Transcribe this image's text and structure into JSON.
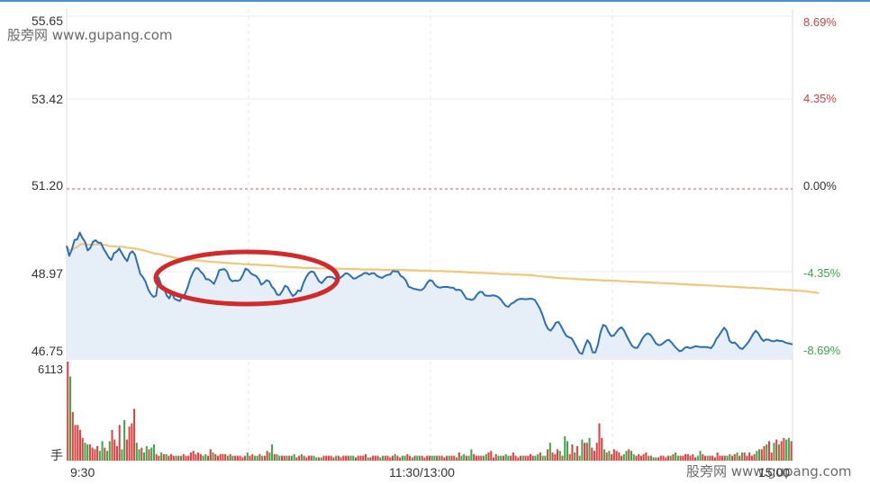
{
  "watermark": "股旁网 www.gupang.com",
  "colors": {
    "price_line": "#2a6fba",
    "avg_line": "#f0c878",
    "area": "#e6eff8",
    "up": "#e04040",
    "down": "#3aa84a",
    "ref": "#e05050",
    "annotation": "#d22a2a"
  },
  "chart_data": {
    "type": "line",
    "y_axis_left": [
      "55.65",
      "53.42",
      "51.20",
      "48.97",
      "46.75"
    ],
    "y_axis_right": [
      "8.69%",
      "4.35%",
      "0.00%",
      "-4.35%",
      "-8.69%"
    ],
    "x_ticks": [
      "9:30",
      "11:30/13:00",
      "15:00"
    ],
    "ylim": [
      46.75,
      55.65
    ],
    "reference_price": 51.2,
    "series": [
      {
        "values": [
          49.7,
          49.44,
          49.61,
          49.86,
          49.87,
          50.05,
          49.91,
          49.81,
          49.58,
          49.65,
          49.81,
          49.85,
          49.79,
          49.78,
          49.63,
          49.52,
          49.4,
          49.33,
          49.51,
          49.55,
          49.63,
          49.51,
          49.39,
          49.3,
          49.5,
          49.56,
          49.47,
          49.22,
          48.96,
          48.88,
          48.76,
          48.56,
          48.44,
          48.36,
          48.39,
          48.87,
          48.67,
          48.59,
          48.4,
          48.32,
          48.48,
          48.31,
          48.28,
          48.25,
          48.37,
          48.43,
          48.61,
          48.84,
          49,
          49.11,
          49.11,
          49.02,
          48.95,
          48.82,
          48.82,
          48.77,
          48.7,
          48.86,
          49.06,
          49.08,
          49.09,
          49.02,
          48.83,
          48.77,
          48.79,
          48.78,
          48.81,
          48.94,
          49.1,
          49.07,
          48.98,
          48.94,
          48.91,
          48.83,
          48.68,
          48.73,
          48.8,
          48.77,
          48.63,
          48.56,
          48.42,
          48.41,
          48.51,
          48.65,
          48.62,
          48.49,
          48.38,
          48.43,
          48.53,
          48.51,
          48.72,
          48.87,
          48.98,
          49.03,
          49.01,
          48.89,
          48.77,
          48.72,
          48.81,
          48.88,
          48.89,
          48.88,
          48.83,
          48.84,
          48.86,
          48.91,
          48.98,
          48.97,
          48.91,
          48.84,
          48.85,
          48.9,
          48.93,
          48.98,
          48.99,
          48.95,
          48.98,
          48.98,
          48.91,
          48.88,
          48.86,
          48.91,
          48.94,
          48.95,
          49.04,
          49.03,
          49.03,
          48.91,
          48.87,
          48.79,
          48.63,
          48.6,
          48.57,
          48.56,
          48.54,
          48.54,
          48.6,
          48.72,
          48.8,
          48.78,
          48.68,
          48.62,
          48.6,
          48.62,
          48.62,
          48.62,
          48.6,
          48.6,
          48.54,
          48.55,
          48.53,
          48.42,
          48.31,
          48.3,
          48.28,
          48.31,
          48.42,
          48.49,
          48.49,
          48.4,
          48.39,
          48.39,
          48.4,
          48.39,
          48.36,
          48.3,
          48.2,
          48.12,
          48.1,
          48.18,
          48.21,
          48.27,
          48.3,
          48.31,
          48.3,
          48.3,
          48.31,
          48.31,
          48.28,
          48.17,
          48.04,
          47.87,
          47.66,
          47.52,
          47.47,
          47.56,
          47.68,
          47.7,
          47.59,
          47.45,
          47.33,
          47.3,
          47.27,
          47.15,
          47.02,
          46.89,
          46.86,
          47.06,
          47.22,
          47.13,
          46.9,
          46.9,
          47.1,
          47.43,
          47.62,
          47.59,
          47.44,
          47.33,
          47.34,
          47.43,
          47.52,
          47.56,
          47.47,
          47.32,
          47.19,
          47.07,
          47.02,
          47.02,
          47.14,
          47.27,
          47.36,
          47.4,
          47.36,
          47.26,
          47.14,
          47.09,
          47.1,
          47.15,
          47.21,
          47.23,
          47.16,
          47.07,
          47,
          46.93,
          46.95,
          47.02,
          47.04,
          47.01,
          47.03,
          47.06,
          47.05,
          47.04,
          47.04,
          47.04,
          47.03,
          47.01,
          47.1,
          47.25,
          47.34,
          47.45,
          47.55,
          47.46,
          47.21,
          47.15,
          47.16,
          47.09,
          47.01,
          46.99,
          47.07,
          47.15,
          47.26,
          47.38,
          47.47,
          47.4,
          47.27,
          47.2,
          47.24,
          47.23,
          47.2,
          47.19,
          47.22,
          47.2,
          47.2,
          47.17,
          47.14,
          47.13,
          47.11
        ]
      },
      {
        "values": [
          49.7,
          49.59,
          49.59,
          49.64,
          49.67,
          49.73,
          49.75,
          49.75,
          49.74,
          49.73,
          49.73,
          49.74,
          49.74,
          49.74,
          49.73,
          49.72,
          49.7,
          49.69,
          49.69,
          49.68,
          49.68,
          49.68,
          49.67,
          49.65,
          49.65,
          49.64,
          49.63,
          49.62,
          49.6,
          49.59,
          49.57,
          49.55,
          49.53,
          49.51,
          49.49,
          49.49,
          49.47,
          49.45,
          49.44,
          49.42,
          49.41,
          49.39,
          49.38,
          49.37,
          49.35,
          49.34,
          49.33,
          49.33,
          49.33,
          49.32,
          49.32,
          49.31,
          49.3,
          49.3,
          49.29,
          49.28,
          49.28,
          49.27,
          49.27,
          49.26,
          49.26,
          49.25,
          49.25,
          49.24,
          49.24,
          49.23,
          49.23,
          49.22,
          49.22,
          49.22,
          49.21,
          49.21,
          49.21,
          49.2,
          49.2,
          49.19,
          49.19,
          49.19,
          49.18,
          49.18,
          49.17,
          49.16,
          49.16,
          49.15,
          49.15,
          49.14,
          49.14,
          49.14,
          49.13,
          49.13,
          49.12,
          49.12,
          49.12,
          49.12,
          49.12,
          49.11,
          49.11,
          49.11,
          49.11,
          49.11,
          49.1,
          49.1,
          49.1,
          49.1,
          49.1,
          49.1,
          49.09,
          49.09,
          49.09,
          49.09,
          49.09,
          49.09,
          49.08,
          49.08,
          49.08,
          49.08,
          49.08,
          49.08,
          49.08,
          49.08,
          49.07,
          49.07,
          49.07,
          49.07,
          49.07,
          49.07,
          49.07,
          49.07,
          49.07,
          49.07,
          49.06,
          49.06,
          49.06,
          49.06,
          49.05,
          49.05,
          49.05,
          49.05,
          49.05,
          49.04,
          49.04,
          49.04,
          49.04,
          49.04,
          49.03,
          49.03,
          49.03,
          49.03,
          49.02,
          49.02,
          49.02,
          49.01,
          49.01,
          49,
          49,
          49,
          48.99,
          48.99,
          48.99,
          48.99,
          48.98,
          48.98,
          48.98,
          48.97,
          48.97,
          48.96,
          48.96,
          48.96,
          48.96,
          48.95,
          48.95,
          48.95,
          48.95,
          48.94,
          48.94,
          48.94,
          48.93,
          48.93,
          48.92,
          48.91,
          48.9,
          48.9,
          48.89,
          48.88,
          48.88,
          48.87,
          48.86,
          48.86,
          48.85,
          48.85,
          48.85,
          48.84,
          48.84,
          48.83,
          48.83,
          48.82,
          48.82,
          48.82,
          48.81,
          48.81,
          48.81,
          48.8,
          48.8,
          48.8,
          48.79,
          48.79,
          48.79,
          48.79,
          48.78,
          48.78,
          48.78,
          48.77,
          48.77,
          48.77,
          48.76,
          48.76,
          48.76,
          48.75,
          48.75,
          48.75,
          48.74,
          48.74,
          48.74,
          48.73,
          48.73,
          48.73,
          48.72,
          48.72,
          48.72,
          48.71,
          48.71,
          48.71,
          48.7,
          48.7,
          48.69,
          48.69,
          48.69,
          48.68,
          48.68,
          48.68,
          48.67,
          48.67,
          48.67,
          48.66,
          48.66,
          48.66,
          48.65,
          48.65,
          48.64,
          48.64,
          48.64,
          48.63,
          48.63,
          48.63,
          48.62,
          48.62,
          48.61,
          48.61,
          48.61,
          48.6,
          48.6,
          48.6,
          48.59,
          48.59,
          48.59,
          48.58,
          48.58,
          48.57,
          48.57,
          48.56,
          48.56,
          48.55,
          48.55,
          48.54,
          48.54,
          48.54,
          48.53,
          48.53,
          48.52,
          48.52,
          48.51,
          48.51,
          48.5,
          48.49,
          48.48,
          48.47,
          48.46
        ]
      }
    ],
    "volume_label_max": "6113",
    "volume_unit": "手",
    "volume": [
      6113,
      5200,
      3000,
      2200,
      2200,
      1900,
      1400,
      1100,
      1000,
      1000,
      800,
      700,
      900,
      600,
      1200,
      800,
      600,
      1200,
      1900,
      1300,
      900,
      2200,
      700,
      2500,
      1300,
      2100,
      2300,
      3200,
      1100,
      700,
      800,
      500,
      900,
      700,
      800,
      1000,
      400,
      300,
      500,
      400,
      400,
      300,
      400,
      300,
      300,
      300,
      300,
      400,
      300,
      300,
      500,
      600,
      400,
      500,
      400,
      300,
      400,
      300,
      700,
      500,
      400,
      300,
      400,
      400,
      400,
      300,
      400,
      300,
      300,
      300,
      300,
      200,
      300,
      500,
      300,
      400,
      300,
      300,
      400,
      300,
      300,
      600,
      500,
      1000,
      400,
      400,
      300,
      300,
      300,
      300,
      300,
      300,
      400,
      200,
      300,
      400,
      300,
      200,
      300,
      300,
      300,
      200,
      200,
      200,
      300,
      300,
      300,
      300,
      200,
      300,
      300,
      200,
      300,
      300,
      300,
      300,
      300,
      200,
      300,
      300,
      300,
      400,
      200,
      200,
      300,
      300,
      300,
      200,
      300,
      300,
      300,
      200,
      300,
      400,
      300,
      200,
      300,
      300,
      400,
      300,
      200,
      300,
      300,
      300,
      300,
      200,
      300,
      300,
      300,
      300,
      300,
      300,
      300,
      200,
      300,
      300,
      300,
      300,
      200,
      500,
      300,
      400,
      300,
      300,
      700,
      400,
      300,
      300,
      300,
      300,
      400,
      500,
      600,
      200,
      400,
      300,
      300,
      300,
      400,
      300,
      300,
      500,
      300,
      200,
      300,
      300,
      300,
      300,
      400,
      300,
      300,
      400,
      500,
      300,
      300,
      700,
      1100,
      500,
      400,
      700,
      600,
      300,
      1500,
      1200,
      400,
      1000,
      500,
      900,
      300,
      1300,
      1100,
      1100,
      1400,
      800,
      600,
      1100,
      2300,
      1400,
      700,
      500,
      600,
      400,
      700,
      600,
      500,
      300,
      400,
      600,
      700,
      600,
      400,
      300,
      400,
      300,
      400,
      500,
      300,
      300,
      200,
      200,
      200,
      300,
      300,
      200,
      300,
      300,
      400,
      500,
      300,
      300,
      300,
      400,
      400,
      300,
      400,
      200,
      300,
      600,
      400,
      300,
      300,
      300,
      300,
      200,
      500,
      300,
      300,
      300,
      300,
      400,
      300,
      400,
      500,
      300,
      500,
      500,
      300,
      500,
      300,
      400,
      600,
      700,
      700,
      900,
      1000,
      1200,
      500,
      1100,
      1300,
      1000,
      1200,
      1400,
      1300,
      1400,
      1200
    ]
  }
}
